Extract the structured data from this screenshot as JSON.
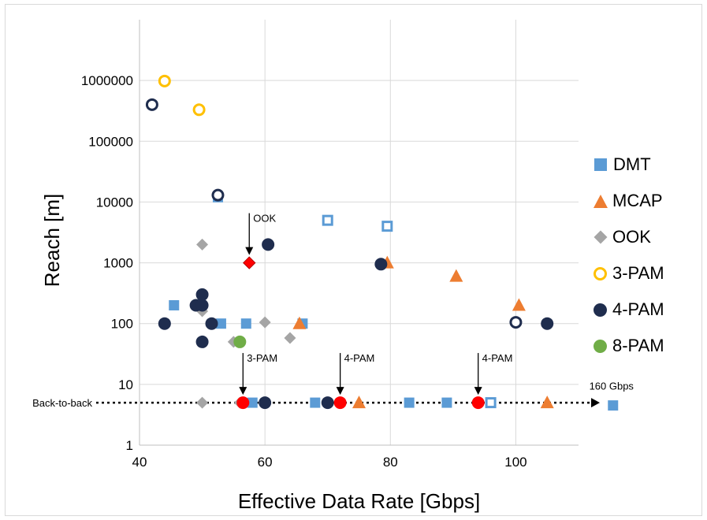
{
  "chart_data": {
    "type": "scatter",
    "xlabel": "Effective Data Rate [Gbps]",
    "ylabel": "Reach [m]",
    "xlim": [
      40,
      110
    ],
    "ylim": [
      1,
      10000000
    ],
    "y_scale": "log",
    "x_ticks": [
      "40",
      "60",
      "80",
      "100"
    ],
    "x_tick_values": [
      40,
      60,
      80,
      100
    ],
    "y_ticks": [
      "1",
      "10",
      "100",
      "1000",
      "10000",
      "100000",
      "1000000"
    ],
    "y_tick_values": [
      1,
      10,
      100,
      1000,
      10000,
      100000,
      1000000
    ],
    "grid": true,
    "legend_position": "right",
    "series": [
      {
        "name": "DMT",
        "marker": "square",
        "color": "#5b9bd5",
        "filled": [
          [
            45.5,
            200
          ],
          [
            52.5,
            12000
          ],
          [
            53,
            100
          ],
          [
            57,
            100
          ],
          [
            58,
            5
          ],
          [
            66,
            100
          ],
          [
            68,
            5
          ],
          [
            83,
            5
          ],
          [
            89,
            5
          ],
          [
            115.5,
            4.5
          ]
        ],
        "hollow": [
          [
            70,
            5000
          ],
          [
            79.5,
            4000
          ],
          [
            96,
            5
          ]
        ]
      },
      {
        "name": "MCAP",
        "marker": "triangle",
        "color": "#ed7d31",
        "filled": [
          [
            65.5,
            100
          ],
          [
            79.5,
            1000
          ],
          [
            90.5,
            600
          ],
          [
            100.5,
            200
          ],
          [
            75,
            5
          ],
          [
            105,
            5
          ]
        ],
        "hollow": []
      },
      {
        "name": "OOK",
        "marker": "diamond",
        "color": "#a5a5a5",
        "filled": [
          [
            50,
            2000
          ],
          [
            50,
            160
          ],
          [
            55,
            50
          ],
          [
            60,
            105
          ],
          [
            64,
            58
          ],
          [
            50,
            5
          ],
          [
            56,
            5
          ]
        ],
        "hollow": []
      },
      {
        "name": "3-PAM",
        "marker": "circle",
        "color": "#ffc000",
        "filled": [],
        "hollow": [
          [
            44,
            980000
          ],
          [
            49.5,
            330000
          ]
        ]
      },
      {
        "name": "4-PAM",
        "marker": "circle",
        "color": "#1f2d4e",
        "filled": [
          [
            44,
            100
          ],
          [
            49,
            200
          ],
          [
            50,
            300
          ],
          [
            50,
            200
          ],
          [
            50,
            50
          ],
          [
            51.5,
            100
          ],
          [
            60.5,
            2000
          ],
          [
            78.5,
            950
          ],
          [
            105,
            100
          ],
          [
            60,
            5
          ],
          [
            70,
            5
          ]
        ],
        "hollow": [
          [
            42,
            400000
          ],
          [
            52.5,
            13000
          ],
          [
            100,
            105
          ]
        ]
      },
      {
        "name": "8-PAM",
        "marker": "circle",
        "color": "#70ad47",
        "filled": [
          [
            56,
            50
          ]
        ],
        "hollow": []
      }
    ],
    "highlights": [
      {
        "marker": "diamond",
        "color": "#ff0000",
        "points": [
          [
            57.5,
            1000
          ]
        ]
      },
      {
        "marker": "circle",
        "color": "#ff0000",
        "points": [
          [
            56.5,
            5
          ],
          [
            72,
            5
          ],
          [
            94,
            5
          ]
        ]
      }
    ],
    "annotations": [
      {
        "text": "OOK",
        "x": 57.5,
        "y": 1000
      },
      {
        "text": "3-PAM",
        "x": 56.5,
        "y": 5
      },
      {
        "text": "4-PAM",
        "x": 72,
        "y": 5
      },
      {
        "text": "4-PAM",
        "x": 94,
        "y": 5
      },
      {
        "text": "160 Gbps",
        "x": 115.5,
        "y": 4.5
      }
    ],
    "reference_line": {
      "label": "Back-to-back",
      "y": 5,
      "style": "dotted"
    }
  }
}
